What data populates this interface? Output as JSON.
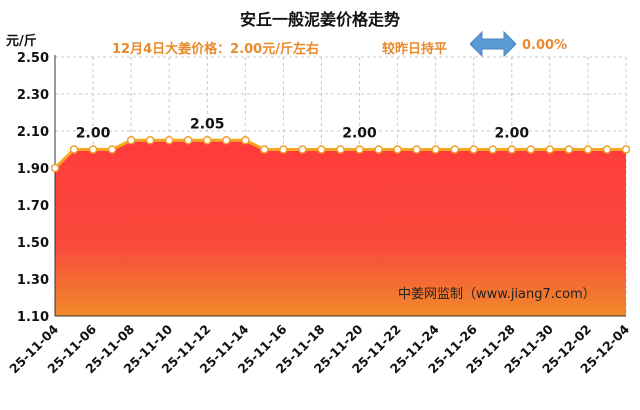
{
  "header": {
    "title": "安丘一般泥姜价格走势",
    "unit": "元/斤",
    "price_text": "12月4日大姜价格：2.00元/斤左右",
    "change_text": "较昨日持平",
    "change_pct": "0.00%"
  },
  "watermark": "中姜网监制（www.jiang7.com）",
  "colors": {
    "accent": "#e88a2c",
    "arrow": "#5b9bd5",
    "area_top": "#ff3b3b",
    "area_bottom": "#f08a2a",
    "line": "#f5a623"
  },
  "chart_data": {
    "type": "area",
    "title": "安丘一般泥姜价格走势",
    "ylabel": "元/斤",
    "ylim": [
      1.1,
      2.5
    ],
    "yticks": [
      "1.10",
      "1.30",
      "1.50",
      "1.70",
      "1.90",
      "2.10",
      "2.30",
      "2.50"
    ],
    "x": [
      "25-11-04",
      "25-11-05",
      "25-11-06",
      "25-11-07",
      "25-11-08",
      "25-11-09",
      "25-11-10",
      "25-11-11",
      "25-11-12",
      "25-11-13",
      "25-11-14",
      "25-11-15",
      "25-11-16",
      "25-11-17",
      "25-11-18",
      "25-11-19",
      "25-11-20",
      "25-11-21",
      "25-11-22",
      "25-11-23",
      "25-11-24",
      "25-11-25",
      "25-11-26",
      "25-11-27",
      "25-11-28",
      "25-11-29",
      "25-11-30",
      "25-12-01",
      "25-12-02",
      "25-12-03",
      "25-12-04"
    ],
    "xticks": [
      "25-11-04",
      "25-11-06",
      "25-11-08",
      "25-11-10",
      "25-11-12",
      "25-11-14",
      "25-11-16",
      "25-11-18",
      "25-11-20",
      "25-11-22",
      "25-11-24",
      "25-11-26",
      "25-11-28",
      "25-11-30",
      "25-12-02",
      "25-12-04"
    ],
    "values": [
      1.9,
      2.0,
      2.0,
      2.0,
      2.05,
      2.05,
      2.05,
      2.05,
      2.05,
      2.05,
      2.05,
      2.0,
      2.0,
      2.0,
      2.0,
      2.0,
      2.0,
      2.0,
      2.0,
      2.0,
      2.0,
      2.0,
      2.0,
      2.0,
      2.0,
      2.0,
      2.0,
      2.0,
      2.0,
      2.0,
      2.0
    ],
    "annotations": [
      {
        "index": 2,
        "label": "2.00"
      },
      {
        "index": 8,
        "label": "2.05"
      },
      {
        "index": 16,
        "label": "2.00"
      },
      {
        "index": 24,
        "label": "2.00"
      }
    ],
    "grid": true,
    "legend": "none"
  }
}
